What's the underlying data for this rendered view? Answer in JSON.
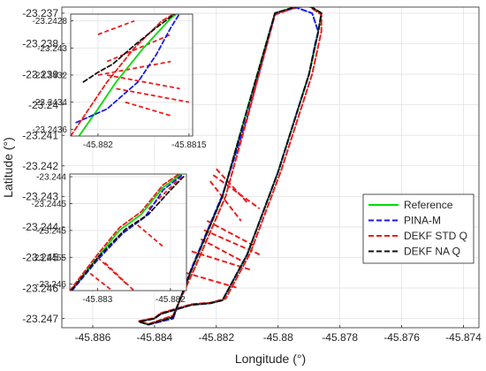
{
  "chart_data": [
    {
      "type": "line",
      "title": "",
      "xlabel": "Longitude (°)",
      "ylabel": "Latitude (°)",
      "xlim": [
        -45.887,
        -45.8735
      ],
      "ylim": [
        -23.2473,
        -23.2368
      ],
      "grid": true,
      "legend_position": "right",
      "xticks": [
        -45.886,
        -45.884,
        -45.882,
        -45.88,
        -45.878,
        -45.876,
        -45.874
      ],
      "xtick_labels": [
        "-45.886",
        "-45.884",
        "-45.882",
        "-45.88",
        "-45.878",
        "-45.876",
        "-45.874"
      ],
      "yticks": [
        -23.237,
        -23.238,
        -23.239,
        -23.24,
        -23.241,
        -23.242,
        -23.243,
        -23.244,
        -23.245,
        -23.246,
        -23.247
      ],
      "ytick_labels": [
        "-23.237",
        "-23.238",
        "-23.239",
        "-23.24",
        "-23.241",
        "-23.242",
        "-23.243",
        "-23.244",
        "-23.245",
        "-23.246",
        "-23.247"
      ],
      "series": [
        {
          "name": "Reference",
          "color": "#00dd00",
          "dash": "solid",
          "x": [
            -45.8834,
            -45.8828,
            -45.8818,
            -45.8811,
            -45.8801,
            -45.8794,
            -45.879,
            -45.8786,
            -45.8787,
            -45.879,
            -45.88,
            -45.881,
            -45.8818,
            -45.8822,
            -45.8828,
            -45.8838,
            -45.884,
            -45.8845,
            -45.8842,
            -45.8834
          ],
          "y": [
            -23.24695,
            -23.2454,
            -23.243,
            -23.2405,
            -23.237,
            -23.23678,
            -23.23675,
            -23.237,
            -23.2376,
            -23.239,
            -23.2422,
            -23.2449,
            -23.2464,
            -23.2465,
            -23.24655,
            -23.24685,
            -23.247,
            -23.2471,
            -23.2472,
            -23.24695
          ]
        },
        {
          "name": "PINA-M",
          "color": "#1a1aee",
          "dash": "dashed",
          "x": [
            -45.8834,
            -45.8828,
            -45.8818,
            -45.881,
            -45.8801,
            -45.8794,
            -45.8789,
            -45.8787,
            -45.8788,
            -45.879,
            -45.88,
            -45.881,
            -45.8818,
            -45.8822,
            -45.8828,
            -45.8838,
            -45.884,
            -45.8845,
            -45.8842,
            -45.8834
          ],
          "y": [
            -23.247,
            -23.24535,
            -23.24295,
            -23.2404,
            -23.237,
            -23.23682,
            -23.237,
            -23.2376,
            -23.238,
            -23.239,
            -23.2422,
            -23.2449,
            -23.2464,
            -23.2465,
            -23.24655,
            -23.24685,
            -23.247,
            -23.2471,
            -23.2472,
            -23.247
          ]
        },
        {
          "name": "DEKF STD Q",
          "color": "#ee1c1c",
          "dash": "dashed",
          "x": [
            -45.8834,
            -45.8827,
            -45.8817,
            -45.881,
            -45.8801,
            -45.8794,
            -45.879,
            -45.8786,
            -45.8786,
            -45.8789,
            -45.8799,
            -45.8809,
            -45.8817,
            -45.8822,
            -45.8828,
            -45.8838,
            -45.884,
            -45.8845,
            -45.8842,
            -45.8834
          ],
          "y": [
            -23.2469,
            -23.24535,
            -23.243,
            -23.24045,
            -23.23705,
            -23.2368,
            -23.23678,
            -23.23705,
            -23.2376,
            -23.239,
            -23.24215,
            -23.24485,
            -23.24635,
            -23.24648,
            -23.24653,
            -23.24682,
            -23.24698,
            -23.24708,
            -23.24718,
            -23.2469
          ]
        },
        {
          "name": "DEKF NA Q",
          "color": "#111111",
          "dash": "dashed",
          "x": [
            -45.8834,
            -45.8828,
            -45.8818,
            -45.8811,
            -45.8801,
            -45.8794,
            -45.879,
            -45.8786,
            -45.8787,
            -45.879,
            -45.88,
            -45.881,
            -45.8818,
            -45.8822,
            -45.8828,
            -45.8838,
            -45.884,
            -45.8845,
            -45.8842,
            -45.8834
          ],
          "y": [
            -23.24695,
            -23.2454,
            -23.243,
            -23.2405,
            -23.237,
            -23.23678,
            -23.23675,
            -23.237,
            -23.2376,
            -23.239,
            -23.2422,
            -23.2449,
            -23.2464,
            -23.2465,
            -23.24655,
            -23.24685,
            -23.247,
            -23.2471,
            -23.2472,
            -23.24695
          ]
        }
      ],
      "outlier_spikes": [
        {
          "from": [
            -45.882,
            -23.2421
          ],
          "to": [
            -45.881,
            -23.2432
          ]
        },
        {
          "from": [
            -45.8821,
            -23.2423
          ],
          "to": [
            -45.8806,
            -23.2434
          ]
        },
        {
          "from": [
            -45.8822,
            -23.2425
          ],
          "to": [
            -45.8812,
            -23.2438
          ]
        },
        {
          "from": [
            -45.8823,
            -23.2438
          ],
          "to": [
            -45.8808,
            -23.2446
          ]
        },
        {
          "from": [
            -45.8824,
            -23.2441
          ],
          "to": [
            -45.8806,
            -23.2449
          ]
        },
        {
          "from": [
            -45.8825,
            -23.2444
          ],
          "to": [
            -45.8812,
            -23.2451
          ]
        },
        {
          "from": [
            -45.8828,
            -23.2448
          ],
          "to": [
            -45.8809,
            -23.2454
          ]
        },
        {
          "from": [
            -45.883,
            -23.2455
          ],
          "to": [
            -45.8813,
            -23.246
          ]
        }
      ],
      "legend": [
        "Reference",
        "PINA-M",
        "DEKF STD Q",
        "DEKF NA Q"
      ]
    },
    {
      "type": "line",
      "title": "",
      "xlim": [
        -45.88215,
        -45.88148
      ],
      "ylim": [
        -23.24365,
        -23.24275
      ],
      "grid": true,
      "xticks": [
        -45.882,
        -45.8815
      ],
      "xtick_labels": [
        "-45.882",
        "-45.8815"
      ],
      "yticks": [
        -23.2428,
        -23.243,
        -23.2432,
        -23.2434,
        -23.2436
      ],
      "ytick_labels": [
        "-23.2428",
        "-23.243",
        "-23.2432",
        "-23.2434",
        "-23.2436"
      ],
      "series": [
        {
          "name": "Reference",
          "color": "#00dd00",
          "dash": "solid",
          "x": [
            -45.88212,
            -45.882,
            -45.8819,
            -45.88175,
            -45.8816,
            -45.8815
          ],
          "y": [
            -23.24368,
            -23.24345,
            -23.24325,
            -23.243,
            -23.24278,
            -23.24268
          ]
        },
        {
          "name": "PINA-M",
          "color": "#1a1aee",
          "dash": "dashed",
          "x": [
            -45.88212,
            -45.88195,
            -45.88178,
            -45.88168,
            -45.8816,
            -45.88153
          ],
          "y": [
            -23.24355,
            -23.24345,
            -23.24325,
            -23.24305,
            -23.24285,
            -23.2427
          ]
        },
        {
          "name": "DEKF STD Q",
          "color": "#ee1c1c",
          "dash": "dashed",
          "x": [
            -45.88215,
            -45.88205,
            -45.88195,
            -45.8818,
            -45.88165,
            -45.88152
          ],
          "y": [
            -23.24365,
            -23.24345,
            -23.24325,
            -23.243,
            -23.2428,
            -23.2427
          ]
        },
        {
          "name": "DEKF NA Q",
          "color": "#111111",
          "dash": "dashed",
          "x": [
            -45.88208,
            -45.882,
            -45.88192,
            -45.8818,
            -45.88168,
            -45.88155
          ],
          "y": [
            -23.24325,
            -23.24318,
            -23.24312,
            -23.24298,
            -23.24285,
            -23.24272
          ]
        }
      ],
      "outlier_spikes": [
        {
          "from": [
            -45.88195,
            -23.2431
          ],
          "to": [
            -45.8816,
            -23.2429
          ]
        },
        {
          "from": [
            -45.882,
            -23.2432
          ],
          "to": [
            -45.8816,
            -23.2431
          ]
        },
        {
          "from": [
            -45.88195,
            -23.2432
          ],
          "to": [
            -45.88155,
            -23.2433
          ]
        },
        {
          "from": [
            -45.8819,
            -23.2433
          ],
          "to": [
            -45.8815,
            -23.2434
          ]
        },
        {
          "from": [
            -45.88185,
            -23.2434
          ],
          "to": [
            -45.8816,
            -23.2435
          ]
        },
        {
          "from": [
            -45.882,
            -23.2429
          ],
          "to": [
            -45.8818,
            -23.2428
          ]
        }
      ]
    },
    {
      "type": "line",
      "title": "",
      "xlim": [
        -45.88338,
        -45.88178
      ],
      "ylim": [
        -23.24612,
        -23.24395
      ],
      "grid": true,
      "xticks": [
        -45.883,
        -45.882
      ],
      "xtick_labels": [
        "-45.883",
        "-45.882"
      ],
      "yticks": [
        -23.244,
        -23.2445,
        -23.245,
        -23.2455,
        -23.246
      ],
      "ytick_labels": [
        "-23.244",
        "-23.2445",
        "-23.245",
        "-23.2455",
        "-23.246"
      ],
      "series": [
        {
          "name": "Reference",
          "color": "#00dd00",
          "dash": "solid",
          "x": [
            -45.88335,
            -45.883,
            -45.8827,
            -45.8824,
            -45.8821,
            -45.88185
          ],
          "y": [
            -23.2461,
            -23.2455,
            -23.245,
            -23.2447,
            -23.2442,
            -23.24395
          ]
        },
        {
          "name": "PINA-M",
          "color": "#1a1aee",
          "dash": "dashed",
          "x": [
            -45.88335,
            -45.883,
            -45.88265,
            -45.88235,
            -45.8821,
            -45.88185
          ],
          "y": [
            -23.24612,
            -23.24555,
            -23.24505,
            -23.24475,
            -23.24425,
            -23.24398
          ]
        },
        {
          "name": "DEKF STD Q",
          "color": "#ee1c1c",
          "dash": "dashed",
          "x": [
            -45.88338,
            -45.883,
            -45.8827,
            -45.8824,
            -45.8821,
            -45.88188
          ],
          "y": [
            -23.24612,
            -23.24545,
            -23.24495,
            -23.24465,
            -23.24415,
            -23.24395
          ]
        },
        {
          "name": "DEKF NA Q",
          "color": "#111111",
          "dash": "dashed",
          "x": [
            -45.88335,
            -45.88298,
            -45.88262,
            -45.8823,
            -45.882,
            -45.88182
          ],
          "y": [
            -23.2461,
            -23.24548,
            -23.24498,
            -23.2447,
            -23.24425,
            -23.244
          ]
        }
      ],
      "outlier_spikes": [
        {
          "from": [
            -45.8823,
            -23.2446
          ],
          "to": [
            -45.88185,
            -23.244
          ]
        },
        {
          "from": [
            -45.883,
            -23.2455
          ],
          "to": [
            -45.8826,
            -23.246
          ]
        },
        {
          "from": [
            -45.8829,
            -23.2456
          ],
          "to": [
            -45.8825,
            -23.24612
          ]
        },
        {
          "from": [
            -45.8831,
            -23.2458
          ],
          "to": [
            -45.8828,
            -23.24612
          ]
        },
        {
          "from": [
            -45.88245,
            -23.2449
          ],
          "to": [
            -45.8821,
            -23.2453
          ]
        }
      ]
    }
  ]
}
